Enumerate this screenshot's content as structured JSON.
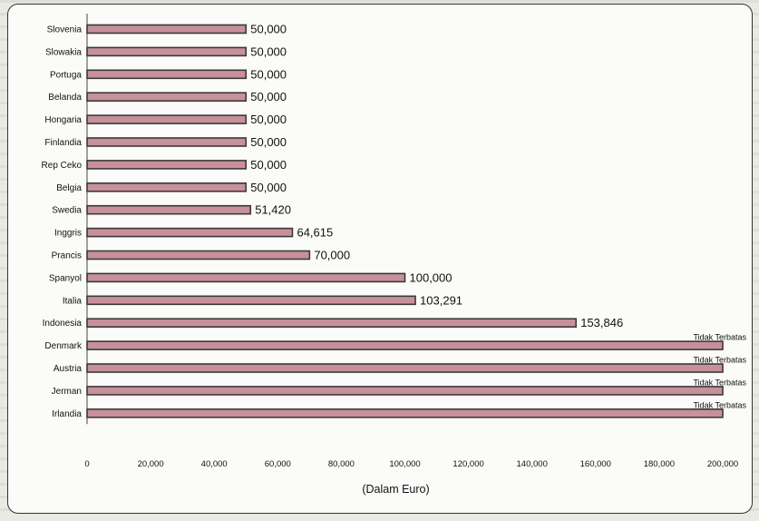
{
  "chart_data": {
    "type": "bar",
    "orientation": "horizontal",
    "categories": [
      "Slovenia",
      "Slowakia",
      "Portuga",
      "Belanda",
      "Hongaria",
      "Finlandia",
      "Rep Ceko",
      "Belgia",
      "Swedia",
      "Inggris",
      "Prancis",
      "Spanyol",
      "Italia",
      "Indonesia",
      "Denmark",
      "Austria",
      "Jerman",
      "Irlandia"
    ],
    "values": [
      50000,
      50000,
      50000,
      50000,
      50000,
      50000,
      50000,
      50000,
      51420,
      64615,
      70000,
      100000,
      103291,
      153846,
      200000,
      200000,
      200000,
      200000
    ],
    "value_labels": [
      "50,000",
      "50,000",
      "50,000",
      "50,000",
      "50,000",
      "50,000",
      "50,000",
      "50,000",
      "51,420",
      "64,615",
      "70,000",
      "100,000",
      "103,291",
      "153,846",
      "Tidak Terbatas",
      "Tidak Terbatas",
      "Tidak Terbatas",
      "Tidak Terbatas"
    ],
    "xlabel": "(Dalam Euro)",
    "xlim": [
      0,
      200000
    ],
    "xticks": [
      "0",
      "20,000",
      "40,000",
      "60,000",
      "80,000",
      "100,000",
      "120,000",
      "140,000",
      "160,000",
      "180,000",
      "200,000"
    ],
    "bar_color": "#c7909a",
    "bar_edge_color": "#3a3a3a",
    "grid": false
  }
}
